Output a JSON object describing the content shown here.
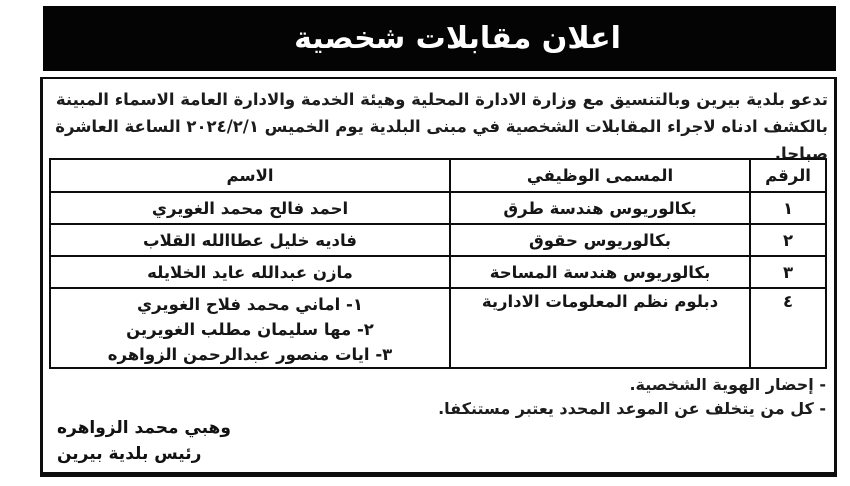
{
  "banner": {
    "title": "اعلان مقابلات شخصية"
  },
  "intro": {
    "text": "تدعو بلدية بيرين وبالتنسيق مع وزارة الادارة المحلية وهيئة الخدمة والادارة العامة الاسماء المبينة بالكشف ادناه لاجراء المقابلات الشخصية في مبنى البلدية يوم الخميس ٢٠٢٤/٢/١ الساعة العاشرة صباحا."
  },
  "table": {
    "headers": {
      "number": "الرقم",
      "job_title": "المسمى الوظيفي",
      "name": "الاسم"
    },
    "rows": [
      {
        "number": "١",
        "job_title": "بكالوريوس هندسة طرق",
        "names": [
          "احمد فالح محمد الغويري"
        ]
      },
      {
        "number": "٢",
        "job_title": "بكالوريوس حقوق",
        "names": [
          "فاديه خليل عطاالله القلاب"
        ]
      },
      {
        "number": "٣",
        "job_title": "بكالوريوس هندسة المساحة",
        "names": [
          "مازن عبدالله عايد الخلايله"
        ]
      },
      {
        "number": "٤",
        "job_title": "دبلوم نظم المعلومات الادارية",
        "names": [
          "١- اماني محمد فلاح الغويري",
          "٢- مها سليمان مطلب الغويرين",
          "٣- ايات منصور عبدالرحمن الزواهره"
        ]
      }
    ]
  },
  "notes": [
    "- إحضار الهوية الشخصية.",
    "- كل من يتخلف عن الموعد المحدد يعتبر مستنكفا."
  ],
  "signature": {
    "name": "وهبي محمد الزواهره",
    "title": "رئيس بلدية بيرين"
  },
  "colors": {
    "banner_bg": "#040404",
    "banner_text": "#ffffff",
    "border": "#0d0d0d",
    "text": "#1a1a1a"
  }
}
